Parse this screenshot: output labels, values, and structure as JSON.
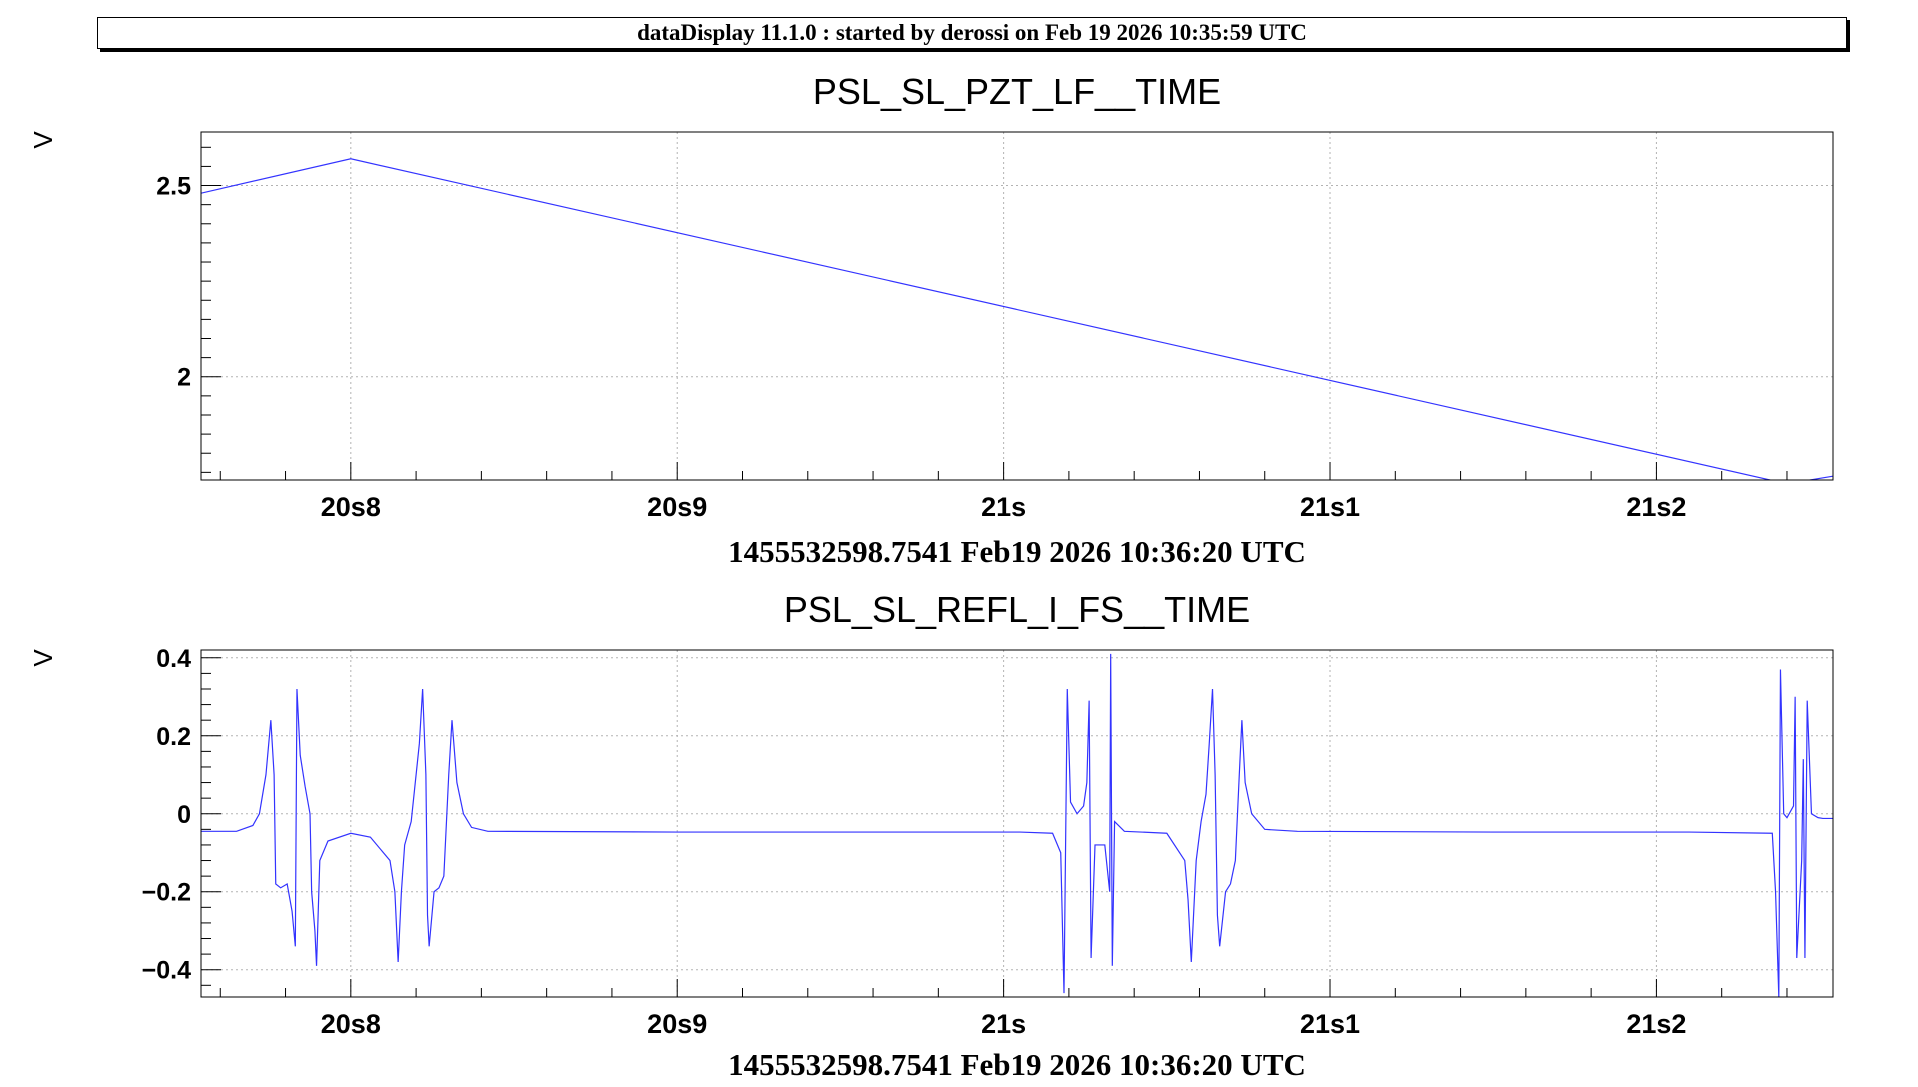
{
  "header": {
    "title": "dataDisplay 11.1.0 : started by derossi on Feb 19 2026 10:35:59 UTC"
  },
  "colors": {
    "trace": "#3333ff",
    "grid": "#b3b3b3",
    "axis": "#000000"
  },
  "chart_data": [
    {
      "type": "line",
      "title": "PSL_SL_PZT_LF__TIME",
      "ylabel": "V",
      "xlabel": "1455532598.7541 Feb19 2026 10:36:20 UTC",
      "x_unit": "seconds after 10:36:20 UTC",
      "xlim": [
        0.7541,
        1.2541
      ],
      "ylim": [
        1.73,
        2.64
      ],
      "x_ticks": [
        {
          "value": 0.8,
          "label": "20s8"
        },
        {
          "value": 0.9,
          "label": "20s9"
        },
        {
          "value": 1.0,
          "label": "21s"
        },
        {
          "value": 1.1,
          "label": "21s1"
        },
        {
          "value": 1.2,
          "label": "21s2"
        }
      ],
      "y_ticks": [
        {
          "value": 2.0,
          "label": "2"
        },
        {
          "value": 2.5,
          "label": "2.5"
        }
      ],
      "grid": true,
      "series": [
        {
          "points": [
            [
              0.7541,
              2.48
            ],
            [
              0.8,
              2.57
            ],
            [
              1.24,
              1.72
            ],
            [
              1.2541,
              1.74
            ]
          ]
        }
      ]
    },
    {
      "type": "line",
      "title": "PSL_SL_REFL_I_FS__TIME",
      "ylabel": "V",
      "xlabel": "1455532598.7541 Feb19 2026 10:36:20 UTC",
      "x_unit": "seconds after 10:36:20 UTC",
      "xlim": [
        0.7541,
        1.2541
      ],
      "ylim": [
        -0.47,
        0.42
      ],
      "x_ticks": [
        {
          "value": 0.8,
          "label": "20s8"
        },
        {
          "value": 0.9,
          "label": "20s9"
        },
        {
          "value": 1.0,
          "label": "21s"
        },
        {
          "value": 1.1,
          "label": "21s1"
        },
        {
          "value": 1.2,
          "label": "21s2"
        }
      ],
      "y_ticks": [
        {
          "value": -0.4,
          "label": "−0.4"
        },
        {
          "value": -0.2,
          "label": "−0.2"
        },
        {
          "value": 0.0,
          "label": "0"
        },
        {
          "value": 0.2,
          "label": "0.2"
        },
        {
          "value": 0.4,
          "label": "0.4"
        }
      ],
      "grid": true,
      "series": [
        {
          "points": [
            [
              0.7541,
              -0.045
            ],
            [
              0.765,
              -0.045
            ],
            [
              0.77,
              -0.03
            ],
            [
              0.772,
              0.0
            ],
            [
              0.774,
              0.1
            ],
            [
              0.7755,
              0.24
            ],
            [
              0.7765,
              0.1
            ],
            [
              0.777,
              -0.18
            ],
            [
              0.7785,
              -0.19
            ],
            [
              0.7805,
              -0.18
            ],
            [
              0.782,
              -0.25
            ],
            [
              0.783,
              -0.34
            ],
            [
              0.7835,
              0.32
            ],
            [
              0.7845,
              0.15
            ],
            [
              0.786,
              0.07
            ],
            [
              0.7875,
              0.0
            ],
            [
              0.788,
              -0.2
            ],
            [
              0.789,
              -0.3
            ],
            [
              0.7895,
              -0.39
            ],
            [
              0.7905,
              -0.12
            ],
            [
              0.793,
              -0.07
            ],
            [
              0.8,
              -0.05
            ],
            [
              0.806,
              -0.06
            ],
            [
              0.812,
              -0.12
            ],
            [
              0.8135,
              -0.2
            ],
            [
              0.8145,
              -0.38
            ],
            [
              0.8155,
              -0.2
            ],
            [
              0.8165,
              -0.08
            ],
            [
              0.8185,
              -0.02
            ],
            [
              0.8195,
              0.06
            ],
            [
              0.821,
              0.18
            ],
            [
              0.822,
              0.32
            ],
            [
              0.823,
              0.1
            ],
            [
              0.8235,
              -0.26
            ],
            [
              0.824,
              -0.34
            ],
            [
              0.8255,
              -0.2
            ],
            [
              0.827,
              -0.19
            ],
            [
              0.8285,
              -0.16
            ],
            [
              0.83,
              0.1
            ],
            [
              0.831,
              0.24
            ],
            [
              0.8325,
              0.08
            ],
            [
              0.8345,
              0.0
            ],
            [
              0.837,
              -0.035
            ],
            [
              0.842,
              -0.045
            ],
            [
              0.9,
              -0.047
            ],
            [
              0.95,
              -0.047
            ],
            [
              1.005,
              -0.047
            ],
            [
              1.015,
              -0.05
            ],
            [
              1.0175,
              -0.1
            ],
            [
              1.0185,
              -0.46
            ],
            [
              1.0195,
              0.32
            ],
            [
              1.0205,
              0.03
            ],
            [
              1.0225,
              0.0
            ],
            [
              1.0245,
              0.02
            ],
            [
              1.0255,
              0.08
            ],
            [
              1.0262,
              0.29
            ],
            [
              1.0268,
              -0.37
            ],
            [
              1.028,
              -0.08
            ],
            [
              1.031,
              -0.08
            ],
            [
              1.0325,
              -0.2
            ],
            [
              1.0328,
              0.41
            ],
            [
              1.0333,
              -0.39
            ],
            [
              1.034,
              -0.02
            ],
            [
              1.037,
              -0.045
            ],
            [
              1.05,
              -0.05
            ],
            [
              1.0555,
              -0.12
            ],
            [
              1.0565,
              -0.22
            ],
            [
              1.0575,
              -0.38
            ],
            [
              1.059,
              -0.12
            ],
            [
              1.0605,
              -0.02
            ],
            [
              1.062,
              0.05
            ],
            [
              1.063,
              0.18
            ],
            [
              1.064,
              0.32
            ],
            [
              1.0648,
              0.1
            ],
            [
              1.0655,
              -0.26
            ],
            [
              1.0662,
              -0.34
            ],
            [
              1.068,
              -0.2
            ],
            [
              1.0695,
              -0.18
            ],
            [
              1.071,
              -0.12
            ],
            [
              1.0722,
              0.1
            ],
            [
              1.073,
              0.24
            ],
            [
              1.074,
              0.08
            ],
            [
              1.076,
              0.0
            ],
            [
              1.08,
              -0.04
            ],
            [
              1.09,
              -0.045
            ],
            [
              1.15,
              -0.047
            ],
            [
              1.21,
              -0.047
            ],
            [
              1.2355,
              -0.05
            ],
            [
              1.2365,
              -0.2
            ],
            [
              1.2375,
              -0.47
            ],
            [
              1.238,
              0.37
            ],
            [
              1.239,
              0.0
            ],
            [
              1.24,
              -0.01
            ],
            [
              1.242,
              0.02
            ],
            [
              1.2425,
              0.3
            ],
            [
              1.243,
              -0.37
            ],
            [
              1.2445,
              -0.12
            ],
            [
              1.245,
              0.14
            ],
            [
              1.2455,
              -0.37
            ],
            [
              1.2462,
              0.29
            ],
            [
              1.2475,
              0.0
            ],
            [
              1.2495,
              -0.01
            ],
            [
              1.251,
              -0.012
            ],
            [
              1.2541,
              -0.012
            ]
          ]
        }
      ]
    }
  ]
}
